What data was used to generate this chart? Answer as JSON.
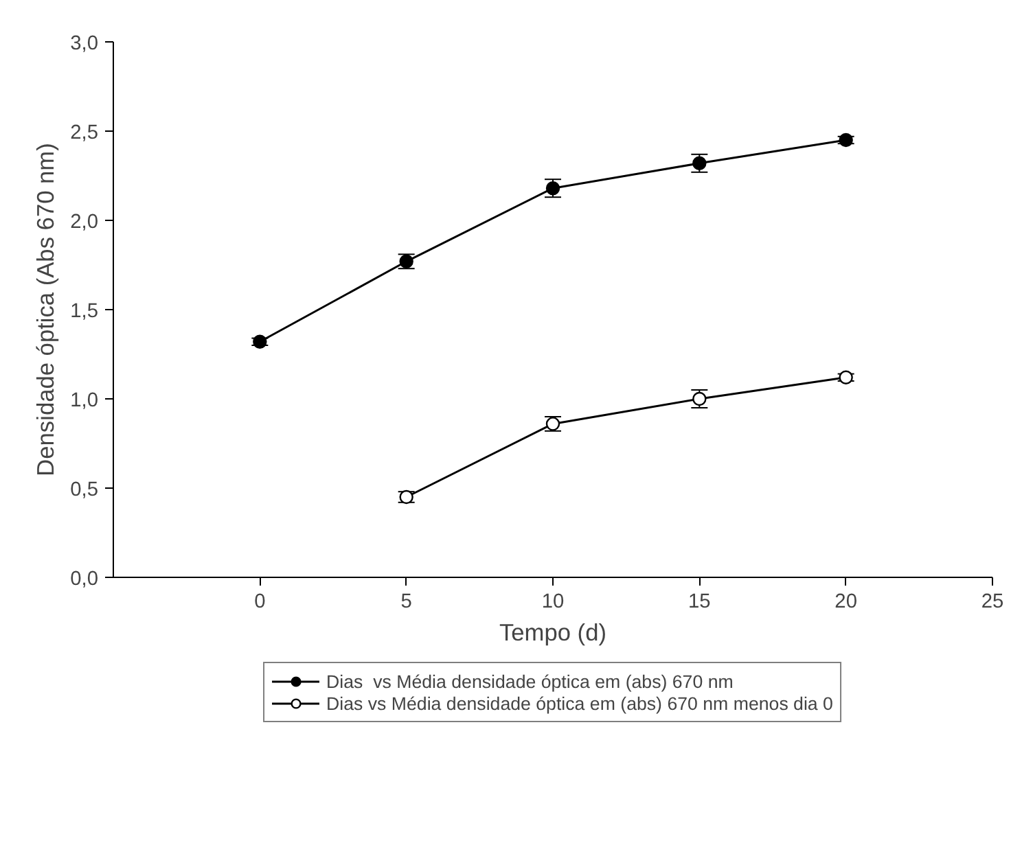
{
  "chart_data": {
    "type": "line",
    "xlabel": "Tempo (d)",
    "ylabel": "Densidade óptica (Abs 670 nm)",
    "xlim": [
      -5,
      25
    ],
    "ylim": [
      0,
      3
    ],
    "xticks": [
      0,
      5,
      10,
      15,
      20,
      25
    ],
    "yticks": [
      {
        "value": 0,
        "label": "0,0"
      },
      {
        "value": 0.5,
        "label": "0,5"
      },
      {
        "value": 1,
        "label": "1,0"
      },
      {
        "value": 1.5,
        "label": "1,5"
      },
      {
        "value": 2,
        "label": "2,0"
      },
      {
        "value": 2.5,
        "label": "2,5"
      },
      {
        "value": 3,
        "label": "3,0"
      }
    ],
    "grid": false,
    "legend": "bottom",
    "line_style": "solid",
    "series": [
      {
        "name": "Dias  vs Média densidade óptica em (abs) 670 nm",
        "color": "#000000",
        "marker": "circle",
        "x": [
          0,
          5,
          10,
          15,
          20
        ],
        "values": [
          1.32,
          1.77,
          2.18,
          2.32,
          2.45
        ],
        "errors": [
          0.02,
          0.04,
          0.05,
          0.05,
          0.02
        ]
      },
      {
        "name": "Dias vs Média densidade óptica em (abs) 670 nm menos dia 0",
        "color": "#000000",
        "marker": "circle",
        "x": [
          5,
          10,
          15,
          20
        ],
        "values": [
          0.45,
          0.86,
          1.0,
          1.12
        ],
        "errors": [
          0.03,
          0.04,
          0.05,
          0.02
        ]
      }
    ]
  }
}
